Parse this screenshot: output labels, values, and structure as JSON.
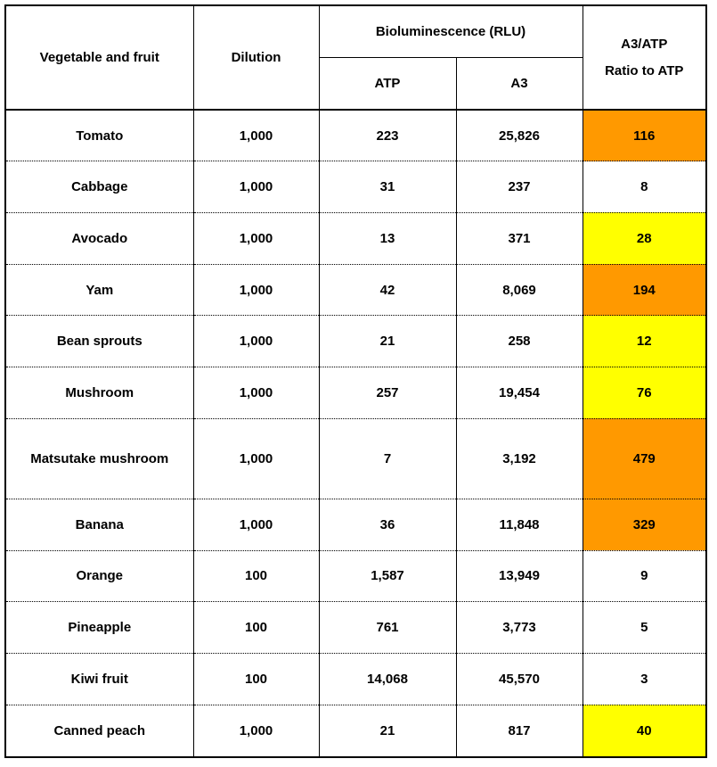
{
  "headers": {
    "vegetable": "Vegetable and fruit",
    "dilution": "Dilution",
    "biolum": "Bioluminescence (RLU)",
    "atp": "ATP",
    "a3": "A3",
    "ratio_line1": "A3/ATP",
    "ratio_line2": "Ratio to ATP"
  },
  "colors": {
    "orange": "#ff9900",
    "yellow": "#ffff00"
  },
  "rows": [
    {
      "name": "Tomato",
      "dilution": "1,000",
      "atp": "223",
      "a3": "25,826",
      "ratio": "116",
      "highlight": "orange"
    },
    {
      "name": "Cabbage",
      "dilution": "1,000",
      "atp": "31",
      "a3": "237",
      "ratio": "8",
      "highlight": "none"
    },
    {
      "name": "Avocado",
      "dilution": "1,000",
      "atp": "13",
      "a3": "371",
      "ratio": "28",
      "highlight": "yellow"
    },
    {
      "name": "Yam",
      "dilution": "1,000",
      "atp": "42",
      "a3": "8,069",
      "ratio": "194",
      "highlight": "orange"
    },
    {
      "name": "Bean sprouts",
      "dilution": "1,000",
      "atp": "21",
      "a3": "258",
      "ratio": "12",
      "highlight": "yellow"
    },
    {
      "name": "Mushroom",
      "dilution": "1,000",
      "atp": "257",
      "a3": "19,454",
      "ratio": "76",
      "highlight": "yellow"
    },
    {
      "name": "Matsutake mushroom",
      "dilution": "1,000",
      "atp": "7",
      "a3": "3,192",
      "ratio": "479",
      "highlight": "orange"
    },
    {
      "name": "Banana",
      "dilution": "1,000",
      "atp": "36",
      "a3": "11,848",
      "ratio": "329",
      "highlight": "orange"
    },
    {
      "name": "Orange",
      "dilution": "100",
      "atp": "1,587",
      "a3": "13,949",
      "ratio": "9",
      "highlight": "none"
    },
    {
      "name": "Pineapple",
      "dilution": "100",
      "atp": "761",
      "a3": "3,773",
      "ratio": "5",
      "highlight": "none"
    },
    {
      "name": "Kiwi fruit",
      "dilution": "100",
      "atp": "14,068",
      "a3": "45,570",
      "ratio": "3",
      "highlight": "none"
    },
    {
      "name": "Canned peach",
      "dilution": "1,000",
      "atp": "21",
      "a3": "817",
      "ratio": "40",
      "highlight": "yellow"
    }
  ]
}
